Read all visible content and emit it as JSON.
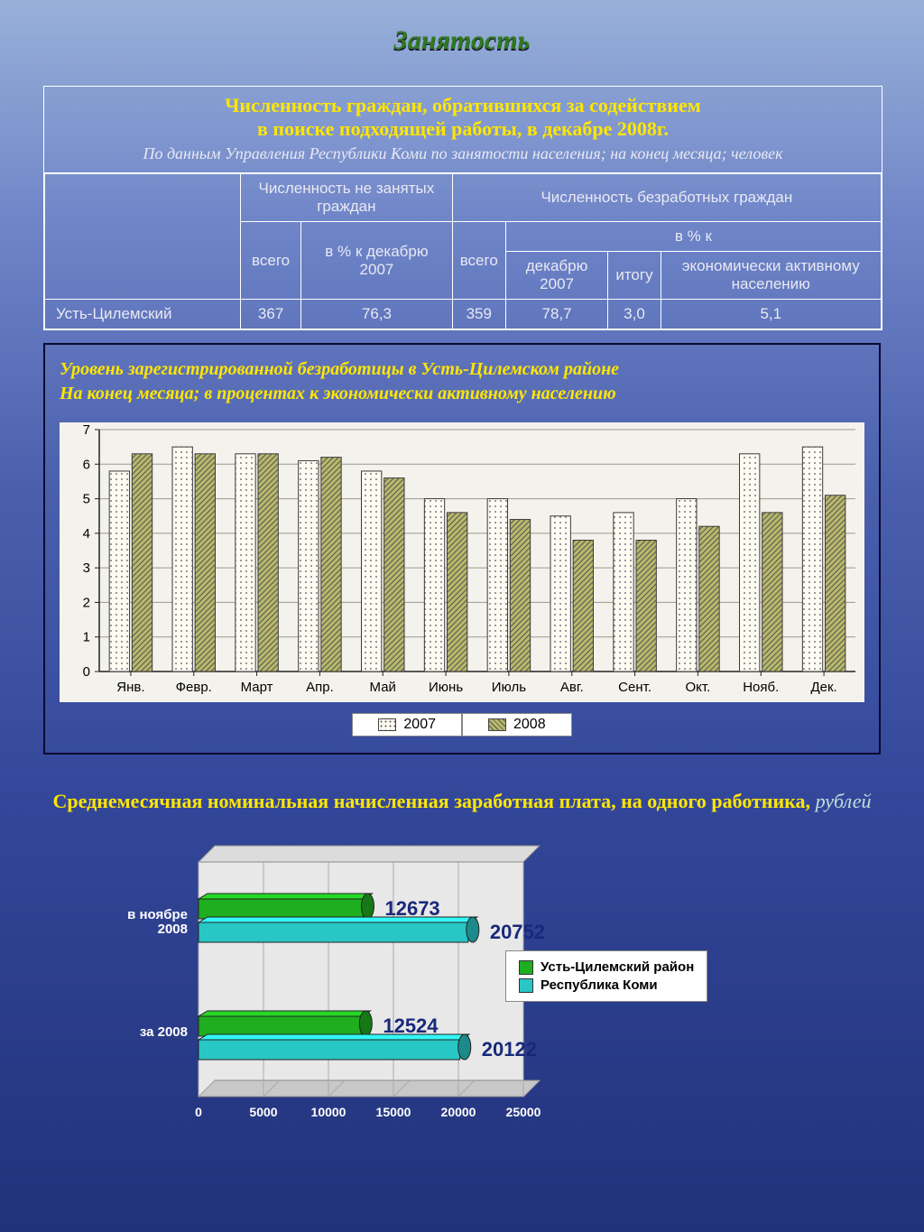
{
  "page_title": "Занятость",
  "table": {
    "caption_line1": "Численность граждан, обратившихся за содействием",
    "caption_line2": "в поиске подходящей работы, в декабре 2008г.",
    "caption_sub": "По данным Управления Республики Коми по занятости населения; на конец месяца; человек",
    "headers": {
      "group1": "Численность не занятых граждан",
      "group2": "Численность безработных граждан",
      "g1_c1": "всего",
      "g1_c2": "в % к декабрю 2007",
      "g2_c1": "всего",
      "g2_pct": "в % к",
      "g2_c2": "декабрю 2007",
      "g2_c3": "итогу",
      "g2_c4": "экономически активному населению"
    },
    "row_label": "Усть-Цилемский",
    "row_values": [
      "367",
      "76,3",
      "359",
      "78,7",
      "3,0",
      "5,1"
    ]
  },
  "chart1": {
    "type": "bar",
    "title_line1": "Уровень зарегистрированной безработицы в Усть-Цилемском районе",
    "title_line2": "На конец месяца; в процентах к экономически активному населению",
    "categories": [
      "Янв.",
      "Февр.",
      "Март",
      "Апр.",
      "Май",
      "Июнь",
      "Июль",
      "Авг.",
      "Сент.",
      "Окт.",
      "Нояб.",
      "Дек."
    ],
    "series": [
      {
        "name": "2007",
        "fill": "#fdfbf2",
        "pattern": "dots",
        "values": [
          5.8,
          6.5,
          6.3,
          6.1,
          5.8,
          5.0,
          5.0,
          4.5,
          4.6,
          5.0,
          6.3,
          6.5
        ]
      },
      {
        "name": "2008",
        "fill": "#b8b86a",
        "pattern": "hatch",
        "values": [
          6.3,
          6.3,
          6.3,
          6.2,
          5.6,
          4.6,
          4.4,
          3.8,
          3.8,
          4.2,
          4.6,
          5.1
        ]
      }
    ],
    "ylim": [
      0,
      7
    ],
    "ytick_step": 1,
    "plot_bg": "#f4f2ec",
    "grid_color": "#9a9a8a",
    "axis_font": "Arial",
    "axis_fontsize": 15,
    "axis_color": "#222",
    "bar_border": "#3a3a3a"
  },
  "chart2": {
    "type": "hbar-3d",
    "title_main": "Среднемесячная номинальная начисленная заработная плата, на одного работника,",
    "title_unit": " рублей",
    "groups": [
      {
        "label": "в ноябре 2008",
        "bars": [
          {
            "series": "Усть-Цилемский район",
            "value": 12673,
            "color": "#1fae1f",
            "text_color": "#18287a"
          },
          {
            "series": "Республика Коми",
            "value": 20752,
            "color": "#29c6c6",
            "text_color": "#18287a"
          }
        ]
      },
      {
        "label": "за 2008",
        "bars": [
          {
            "series": "Усть-Цилемский район",
            "value": 12524,
            "color": "#1fae1f",
            "text_color": "#18287a"
          },
          {
            "series": "Республика Коми",
            "value": 20122,
            "color": "#29c6c6",
            "text_color": "#18287a"
          }
        ]
      }
    ],
    "xlim": [
      0,
      25000
    ],
    "xtick_step": 5000,
    "legend": [
      {
        "label": "Усть-Цилемский район",
        "color": "#1fae1f"
      },
      {
        "label": "Республика Коми",
        "color": "#29c6c6"
      }
    ],
    "value_fontsize": 22,
    "value_fontweight": "bold",
    "floor_color": "#c8c8c8",
    "back_color": "#dcdcdc",
    "label_color": "#ffffff",
    "label_fontsize": 15
  }
}
